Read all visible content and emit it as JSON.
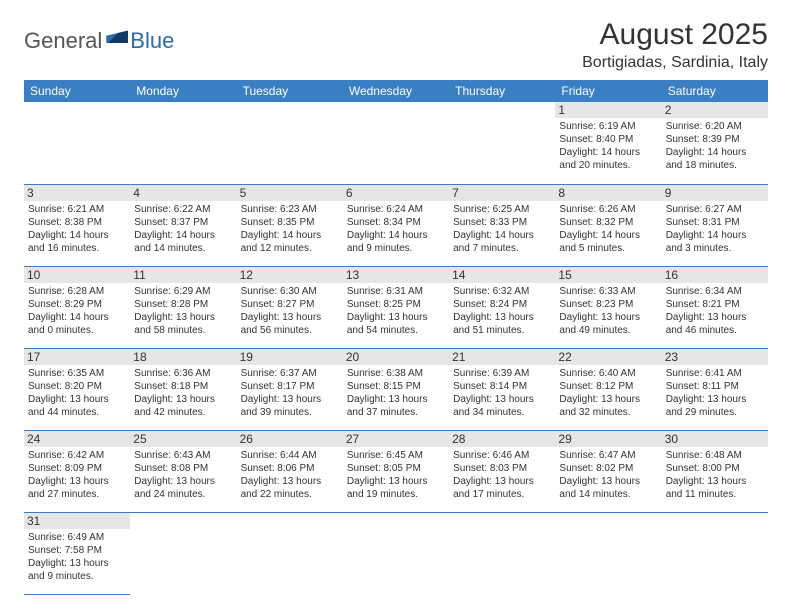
{
  "logo": {
    "general": "General",
    "blue": "Blue"
  },
  "title": "August 2025",
  "location": "Bortigiadas, Sardinia, Italy",
  "colors": {
    "header_bg": "#3a7fc4",
    "header_text": "#ffffff",
    "daynum_bg": "#e6e6e6",
    "row_border": "#3a7fc4",
    "logo_blue": "#2f6aa8"
  },
  "dayheaders": [
    "Sunday",
    "Monday",
    "Tuesday",
    "Wednesday",
    "Thursday",
    "Friday",
    "Saturday"
  ],
  "weeks": [
    [
      null,
      null,
      null,
      null,
      null,
      {
        "n": "1",
        "sr": "Sunrise: 6:19 AM",
        "ss": "Sunset: 8:40 PM",
        "dl1": "Daylight: 14 hours",
        "dl2": "and 20 minutes."
      },
      {
        "n": "2",
        "sr": "Sunrise: 6:20 AM",
        "ss": "Sunset: 8:39 PM",
        "dl1": "Daylight: 14 hours",
        "dl2": "and 18 minutes."
      }
    ],
    [
      {
        "n": "3",
        "sr": "Sunrise: 6:21 AM",
        "ss": "Sunset: 8:38 PM",
        "dl1": "Daylight: 14 hours",
        "dl2": "and 16 minutes."
      },
      {
        "n": "4",
        "sr": "Sunrise: 6:22 AM",
        "ss": "Sunset: 8:37 PM",
        "dl1": "Daylight: 14 hours",
        "dl2": "and 14 minutes."
      },
      {
        "n": "5",
        "sr": "Sunrise: 6:23 AM",
        "ss": "Sunset: 8:35 PM",
        "dl1": "Daylight: 14 hours",
        "dl2": "and 12 minutes."
      },
      {
        "n": "6",
        "sr": "Sunrise: 6:24 AM",
        "ss": "Sunset: 8:34 PM",
        "dl1": "Daylight: 14 hours",
        "dl2": "and 9 minutes."
      },
      {
        "n": "7",
        "sr": "Sunrise: 6:25 AM",
        "ss": "Sunset: 8:33 PM",
        "dl1": "Daylight: 14 hours",
        "dl2": "and 7 minutes."
      },
      {
        "n": "8",
        "sr": "Sunrise: 6:26 AM",
        "ss": "Sunset: 8:32 PM",
        "dl1": "Daylight: 14 hours",
        "dl2": "and 5 minutes."
      },
      {
        "n": "9",
        "sr": "Sunrise: 6:27 AM",
        "ss": "Sunset: 8:31 PM",
        "dl1": "Daylight: 14 hours",
        "dl2": "and 3 minutes."
      }
    ],
    [
      {
        "n": "10",
        "sr": "Sunrise: 6:28 AM",
        "ss": "Sunset: 8:29 PM",
        "dl1": "Daylight: 14 hours",
        "dl2": "and 0 minutes."
      },
      {
        "n": "11",
        "sr": "Sunrise: 6:29 AM",
        "ss": "Sunset: 8:28 PM",
        "dl1": "Daylight: 13 hours",
        "dl2": "and 58 minutes."
      },
      {
        "n": "12",
        "sr": "Sunrise: 6:30 AM",
        "ss": "Sunset: 8:27 PM",
        "dl1": "Daylight: 13 hours",
        "dl2": "and 56 minutes."
      },
      {
        "n": "13",
        "sr": "Sunrise: 6:31 AM",
        "ss": "Sunset: 8:25 PM",
        "dl1": "Daylight: 13 hours",
        "dl2": "and 54 minutes."
      },
      {
        "n": "14",
        "sr": "Sunrise: 6:32 AM",
        "ss": "Sunset: 8:24 PM",
        "dl1": "Daylight: 13 hours",
        "dl2": "and 51 minutes."
      },
      {
        "n": "15",
        "sr": "Sunrise: 6:33 AM",
        "ss": "Sunset: 8:23 PM",
        "dl1": "Daylight: 13 hours",
        "dl2": "and 49 minutes."
      },
      {
        "n": "16",
        "sr": "Sunrise: 6:34 AM",
        "ss": "Sunset: 8:21 PM",
        "dl1": "Daylight: 13 hours",
        "dl2": "and 46 minutes."
      }
    ],
    [
      {
        "n": "17",
        "sr": "Sunrise: 6:35 AM",
        "ss": "Sunset: 8:20 PM",
        "dl1": "Daylight: 13 hours",
        "dl2": "and 44 minutes."
      },
      {
        "n": "18",
        "sr": "Sunrise: 6:36 AM",
        "ss": "Sunset: 8:18 PM",
        "dl1": "Daylight: 13 hours",
        "dl2": "and 42 minutes."
      },
      {
        "n": "19",
        "sr": "Sunrise: 6:37 AM",
        "ss": "Sunset: 8:17 PM",
        "dl1": "Daylight: 13 hours",
        "dl2": "and 39 minutes."
      },
      {
        "n": "20",
        "sr": "Sunrise: 6:38 AM",
        "ss": "Sunset: 8:15 PM",
        "dl1": "Daylight: 13 hours",
        "dl2": "and 37 minutes."
      },
      {
        "n": "21",
        "sr": "Sunrise: 6:39 AM",
        "ss": "Sunset: 8:14 PM",
        "dl1": "Daylight: 13 hours",
        "dl2": "and 34 minutes."
      },
      {
        "n": "22",
        "sr": "Sunrise: 6:40 AM",
        "ss": "Sunset: 8:12 PM",
        "dl1": "Daylight: 13 hours",
        "dl2": "and 32 minutes."
      },
      {
        "n": "23",
        "sr": "Sunrise: 6:41 AM",
        "ss": "Sunset: 8:11 PM",
        "dl1": "Daylight: 13 hours",
        "dl2": "and 29 minutes."
      }
    ],
    [
      {
        "n": "24",
        "sr": "Sunrise: 6:42 AM",
        "ss": "Sunset: 8:09 PM",
        "dl1": "Daylight: 13 hours",
        "dl2": "and 27 minutes."
      },
      {
        "n": "25",
        "sr": "Sunrise: 6:43 AM",
        "ss": "Sunset: 8:08 PM",
        "dl1": "Daylight: 13 hours",
        "dl2": "and 24 minutes."
      },
      {
        "n": "26",
        "sr": "Sunrise: 6:44 AM",
        "ss": "Sunset: 8:06 PM",
        "dl1": "Daylight: 13 hours",
        "dl2": "and 22 minutes."
      },
      {
        "n": "27",
        "sr": "Sunrise: 6:45 AM",
        "ss": "Sunset: 8:05 PM",
        "dl1": "Daylight: 13 hours",
        "dl2": "and 19 minutes."
      },
      {
        "n": "28",
        "sr": "Sunrise: 6:46 AM",
        "ss": "Sunset: 8:03 PM",
        "dl1": "Daylight: 13 hours",
        "dl2": "and 17 minutes."
      },
      {
        "n": "29",
        "sr": "Sunrise: 6:47 AM",
        "ss": "Sunset: 8:02 PM",
        "dl1": "Daylight: 13 hours",
        "dl2": "and 14 minutes."
      },
      {
        "n": "30",
        "sr": "Sunrise: 6:48 AM",
        "ss": "Sunset: 8:00 PM",
        "dl1": "Daylight: 13 hours",
        "dl2": "and 11 minutes."
      }
    ],
    [
      {
        "n": "31",
        "sr": "Sunrise: 6:49 AM",
        "ss": "Sunset: 7:58 PM",
        "dl1": "Daylight: 13 hours",
        "dl2": "and 9 minutes."
      },
      null,
      null,
      null,
      null,
      null,
      null
    ]
  ]
}
